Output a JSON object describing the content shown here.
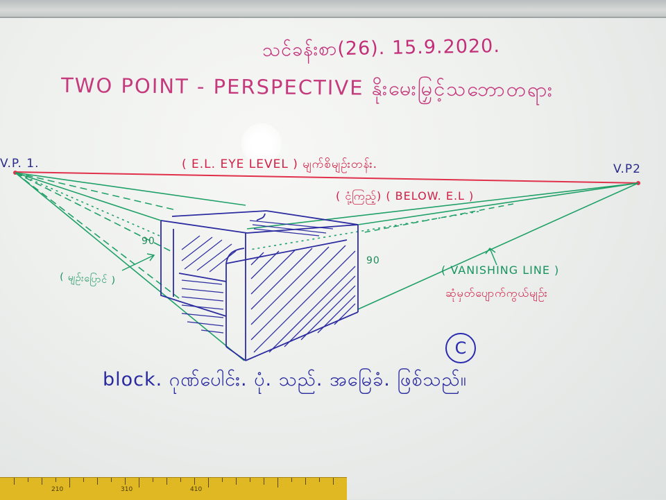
{
  "whiteboard": {
    "date_line": "သင်ခန်းစာ(26). 15.9.2020.",
    "title": "TWO POINT - PERSPECTIVE နိုးမေးမြှင့်သဘောတရား",
    "vp1_label": "V.P. 1.",
    "vp2_label": "V.P2",
    "eye_level": "( E.L. EYE LEVEL ) မျက်စိမျဉ်းတန်း.",
    "below_label": "( ငုံ့ကြည့်) ( BELOW. E.L )",
    "angle_left": "90",
    "angle_right": "90",
    "horizontal_label": "( မျဉ်းပြောင် )",
    "vanishing_line": "( VANISHING LINE )",
    "vanishing_line_mm": "ဆုံမှတ်ပျောက်ကွယ်မျဉ်း",
    "bottom_note": "block. ဂုဏ်ပေါင်း. ပုံ. သည်. အမြေခံ. ဖြစ်သည်။",
    "circle_mark": "C"
  },
  "colors": {
    "eye_level_line": "#e0304a",
    "vanishing_lines": "#1fa067",
    "block_ink": "#2c2ca0",
    "title_ink": "#c43a7d"
  },
  "ruler": {
    "numbers": [
      "210",
      "310",
      "410"
    ]
  }
}
